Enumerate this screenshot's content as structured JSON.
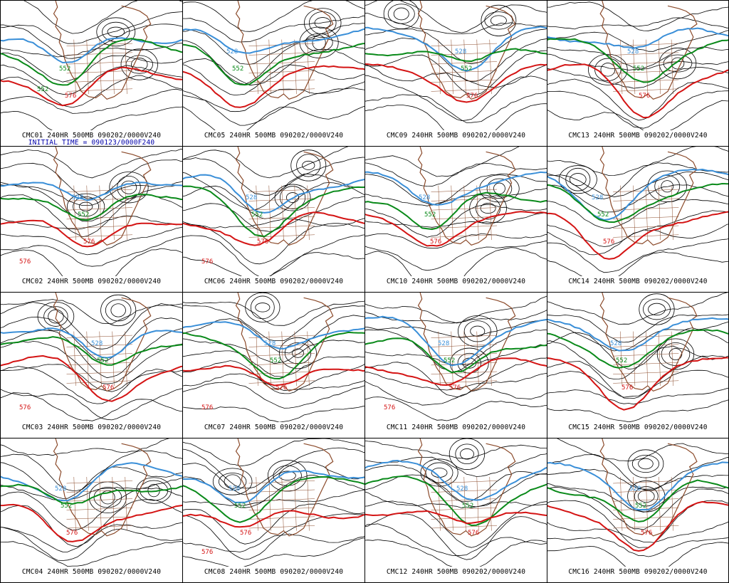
{
  "colors": {
    "contour": "#000000",
    "blue_540": "#3a8fd8",
    "green_552": "#0a8a1a",
    "red_576": "#d41414",
    "geography": "#8b4a2a",
    "label_text": "#000000",
    "initial_time_text": "#0000aa"
  },
  "initial_time": "INITIAL TIME = 090123/0000F240",
  "panels": [
    {
      "caption": "CMC01 240HR 500MB 090202/0000V240",
      "labels": {
        "green": "552",
        "red": "576",
        "extra_green": "552"
      }
    },
    {
      "caption": "CMC05 240HR 500MB 090202/0000V240",
      "labels": {
        "green": "552",
        "red": "",
        "blue": "528"
      }
    },
    {
      "caption": "CMC09 240HR 500MB 090202/0000V240",
      "labels": {
        "green": "552",
        "red": "576",
        "blue": "528"
      }
    },
    {
      "caption": "CMC13 240HR 500MB 090202/0000V240",
      "labels": {
        "green": "552",
        "red": "576",
        "blue": "528"
      }
    },
    {
      "caption": "CMC02 240HR 500MB 090202/0000V240",
      "labels": {
        "green": "552",
        "red": "576",
        "red2": "576",
        "blue": "528"
      }
    },
    {
      "caption": "CMC06 240HR 500MB 090202/0000V240",
      "labels": {
        "green": "552",
        "red": "576",
        "red2": "576",
        "blue": "528"
      }
    },
    {
      "caption": "CMC10 240HR 500MB 090202/0000V240",
      "labels": {
        "green": "552",
        "red": "576",
        "blue": "528"
      }
    },
    {
      "caption": "CMC14 240HR 500MB 090202/0000V240",
      "labels": {
        "green": "552",
        "red": "576",
        "blue": "528"
      }
    },
    {
      "caption": "CMC03 240HR 500MB 090202/0000V240",
      "labels": {
        "green": "552",
        "red": "576",
        "red2": "576",
        "blue": "528"
      }
    },
    {
      "caption": "CMC07 240HR 500MB 090202/0000V240",
      "labels": {
        "green": "552",
        "red": "576",
        "red2": "576",
        "blue": "528"
      }
    },
    {
      "caption": "CMC11 240HR 500MB 090202/0000V240",
      "labels": {
        "green": "552",
        "red": "576",
        "red2": "576",
        "blue": "528"
      }
    },
    {
      "caption": "CMC15 240HR 500MB 090202/0000V240",
      "labels": {
        "green": "552",
        "red": "576",
        "blue": "528"
      }
    },
    {
      "caption": "CMC04 240HR 500MB 090202/0000V240",
      "labels": {
        "green": "552",
        "red": "576",
        "blue": "528"
      }
    },
    {
      "caption": "CMC08 240HR 500MB 090202/0000V240",
      "labels": {
        "green": "552",
        "red": "576",
        "red2": "576",
        "blue": "528"
      }
    },
    {
      "caption": "CMC12 240HR 500MB 090202/0000V240",
      "labels": {
        "green": "552",
        "red": "576",
        "blue": "528"
      }
    },
    {
      "caption": "CMC16 240HR 500MB 090202/0000V240",
      "labels": {
        "green": "552",
        "red": "576",
        "blue": "528"
      }
    }
  ]
}
